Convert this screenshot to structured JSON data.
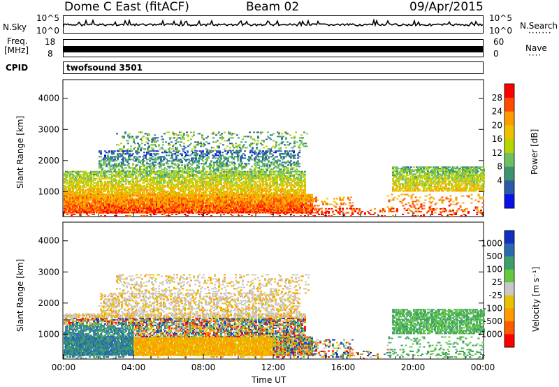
{
  "header": {
    "title": "Dome C East (fitACF)",
    "beam": "Beam 02",
    "date": "09/Apr/2015"
  },
  "strips": {
    "nsky_label": "N.Sky",
    "nsky_ticks": [
      "10^5",
      "10^0"
    ],
    "nsearch_label": "N.Search",
    "nsearch_ticks": [
      "10^5",
      "10^0"
    ],
    "freq_label": "Freq.",
    "freq_unit": "[MHz]",
    "freq_ticks": [
      "18",
      "8"
    ],
    "nave_label": "Nave",
    "nave_ticks": [
      "60",
      "0"
    ],
    "cpid_label": "CPID",
    "cpid_value": "twofsound 3501"
  },
  "chart_data": [
    {
      "type": "heatmap",
      "panel": "power",
      "ylabel": "Slant Range [km]",
      "ylim": [
        200,
        4600
      ],
      "yticks": [
        1000,
        2000,
        3000,
        4000
      ],
      "xlim": [
        0,
        24
      ],
      "colorbar": {
        "label": "Power [dB]",
        "ticks": [
          "28",
          "24",
          "20",
          "16",
          "12",
          "8",
          "4"
        ],
        "colors": [
          "#ff0000",
          "#ff4a00",
          "#ff9a00",
          "#f0c000",
          "#b8d400",
          "#6cc060",
          "#3a9470",
          "#2a5aa8",
          "#0a10e8"
        ]
      }
    },
    {
      "type": "heatmap",
      "panel": "velocity",
      "ylabel": "Slant Range [km]",
      "xlabel": "Time UT",
      "ylim": [
        200,
        4600
      ],
      "yticks": [
        1000,
        2000,
        3000,
        4000
      ],
      "xlim": [
        0,
        24
      ],
      "xticks": [
        "00:00",
        "04:00",
        "08:00",
        "12:00",
        "16:00",
        "20:00",
        "00:00"
      ],
      "colorbar": {
        "label": "Velocity [m s⁻¹]",
        "ticks": [
          "1000",
          "500",
          "100",
          "25",
          "-25",
          "-100",
          "-500",
          "-1000"
        ],
        "colors": [
          "#1030c0",
          "#2c6ab0",
          "#3c9e6a",
          "#64c840",
          "#c8c8c8",
          "#e6c200",
          "#ff9a00",
          "#ff5a00",
          "#ff0000"
        ]
      }
    }
  ]
}
